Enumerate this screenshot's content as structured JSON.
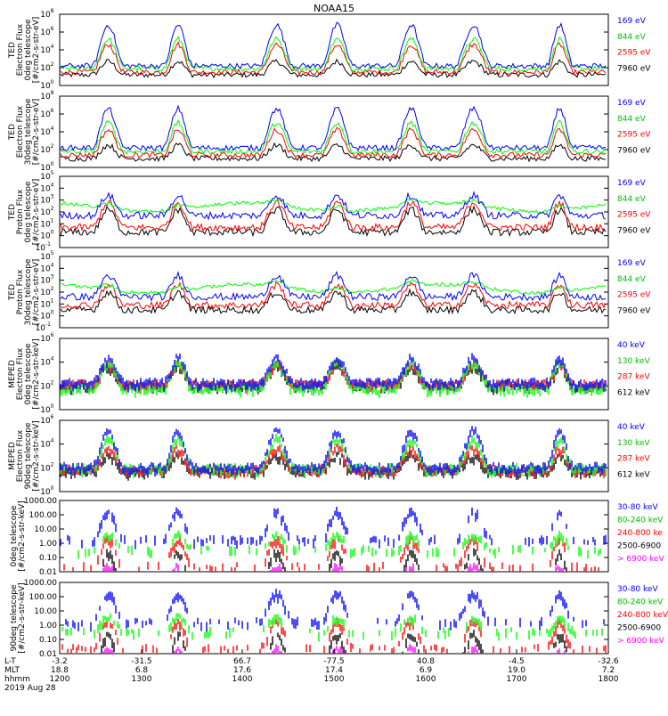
{
  "title": "NOAA15",
  "colors": {
    "blue": "#0000ff",
    "red": "#ff0000",
    "green": "#00ff00",
    "black": "#000000",
    "magenta": "#ff00ff"
  },
  "chart_data": [
    {
      "type": "line",
      "ylabel": [
        "TED",
        "Electron Flux",
        "0deg telescope",
        "[#/cm2-s-str-eV]"
      ],
      "scale": "log",
      "yticks": [
        "10^0",
        "10^2",
        "10^4",
        "10^6",
        "10^8"
      ],
      "ylim": [
        1,
        100000000
      ],
      "series": [
        {
          "name": "7960 eV",
          "color": "#000000",
          "base": 1.2,
          "peak": 2.7
        },
        {
          "name": "2595 eV",
          "color": "#ff0000",
          "base": 1.5,
          "peak": 4.6
        },
        {
          "name": "844 eV",
          "color": "#00ff00",
          "base": 1.9,
          "peak": 5.2
        },
        {
          "name": "169 eV",
          "color": "#0000ff",
          "base": 2.2,
          "peak": 6.8
        }
      ]
    },
    {
      "type": "line",
      "ylabel": [
        "TED",
        "Electron Flux",
        "30deg telescope",
        "[#/cm2-s-str-eV]"
      ],
      "scale": "log",
      "yticks": [
        "10^0",
        "10^2",
        "10^4",
        "10^6",
        "10^8"
      ],
      "ylim": [
        1,
        100000000
      ],
      "series": [
        {
          "name": "7960 eV",
          "color": "#000000",
          "base": 1.0,
          "peak": 2.5
        },
        {
          "name": "2595 eV",
          "color": "#ff0000",
          "base": 1.4,
          "peak": 4.2
        },
        {
          "name": "844 eV",
          "color": "#00ff00",
          "base": 1.8,
          "peak": 5.0
        },
        {
          "name": "169 eV",
          "color": "#0000ff",
          "base": 2.2,
          "peak": 6.6
        }
      ]
    },
    {
      "type": "line",
      "ylabel": [
        "TED",
        "Proton Flux",
        "0deg telescope",
        "[#/cm2-s-str-eV]"
      ],
      "scale": "log",
      "yticks": [
        "10^-1",
        "10^0",
        "10^1",
        "10^2",
        "10^3",
        "10^4",
        "10^5"
      ],
      "ylim": [
        0.1,
        100000
      ],
      "series": [
        {
          "name": "7960 eV",
          "color": "#000000",
          "base": 0.3,
          "peak": 2.2
        },
        {
          "name": "2595 eV",
          "color": "#ff0000",
          "base": 0.7,
          "peak": 2.8
        },
        {
          "name": "844 eV",
          "color": "#00ff00",
          "base": 2.4,
          "peak": 3.2
        },
        {
          "name": "169 eV",
          "color": "#0000ff",
          "base": 1.7,
          "peak": 3.4
        }
      ]
    },
    {
      "type": "line",
      "ylabel": [
        "TED",
        "Proton Flux",
        "30deg telescope",
        "[#/cm2-s-str-eV]"
      ],
      "scale": "log",
      "yticks": [
        "10^-1",
        "10^0",
        "10^1",
        "10^2",
        "10^3",
        "10^4",
        "10^5"
      ],
      "ylim": [
        0.1,
        100000
      ],
      "series": [
        {
          "name": "7960 eV",
          "color": "#000000",
          "base": 0.5,
          "peak": 2.0
        },
        {
          "name": "2595 eV",
          "color": "#ff0000",
          "base": 0.9,
          "peak": 2.6
        },
        {
          "name": "844 eV",
          "color": "#00ff00",
          "base": 2.3,
          "peak": 3.0
        },
        {
          "name": "169 eV",
          "color": "#0000ff",
          "base": 1.6,
          "peak": 3.4
        }
      ]
    },
    {
      "type": "line",
      "ylabel": [
        "MEPED",
        "Electron Flux",
        "0deg telescope",
        "[#/cm2-s-str-keV]"
      ],
      "scale": "log",
      "yticks": [
        "10^0",
        "10^2",
        "10^4",
        "10^6"
      ],
      "ylim": [
        1,
        1000000
      ],
      "series": [
        {
          "name": "612 keV",
          "color": "#000000",
          "base": 2.2,
          "peak": 3.8
        },
        {
          "name": "287 keV",
          "color": "#ff0000",
          "base": 2.3,
          "peak": 4.0
        },
        {
          "name": "130 keV",
          "color": "#00ff00",
          "base": 1.9,
          "peak": 4.2
        },
        {
          "name": "40 keV",
          "color": "#0000ff",
          "base": 2.4,
          "peak": 4.5
        }
      ]
    },
    {
      "type": "line",
      "ylabel": [
        "MEPED",
        "Electron Flux",
        "90deg telescope",
        "[#/cm2-s-str-keV]"
      ],
      "scale": "log",
      "yticks": [
        "10^0",
        "10^2",
        "10^4",
        "10^6"
      ],
      "ylim": [
        1,
        1000000
      ],
      "series": [
        {
          "name": "612 keV",
          "color": "#000000",
          "base": 1.9,
          "peak": 3.2
        },
        {
          "name": "287 keV",
          "color": "#ff0000",
          "base": 2.0,
          "peak": 3.8
        },
        {
          "name": "130 keV",
          "color": "#00ff00",
          "base": 2.1,
          "peak": 4.6
        },
        {
          "name": "40 keV",
          "color": "#0000ff",
          "base": 2.2,
          "peak": 5.3
        }
      ]
    },
    {
      "type": "line",
      "ylabel": [
        "0deg telescope",
        "[#/cm2-s-str-keV]"
      ],
      "scale": "log",
      "yticks": [
        "0.01",
        "0.10",
        "1.00",
        "10.00",
        "100.00",
        "1000.00"
      ],
      "ylim": [
        0.01,
        1000
      ],
      "series": [
        {
          "name": "> 6900 keV",
          "color": "#ff00ff",
          "base": -3,
          "peak": -1.5
        },
        {
          "name": "2500-6900",
          "color": "#000000",
          "base": -3,
          "peak": -0.5
        },
        {
          "name": "240-800 ke",
          "color": "#ff0000",
          "base": -1.5,
          "peak": 0.4
        },
        {
          "name": "80-240 keV",
          "color": "#00ff00",
          "base": -0.3,
          "peak": 0.7
        },
        {
          "name": "30-80 keV",
          "color": "#0000ff",
          "base": 0.4,
          "peak": 2.4
        }
      ]
    },
    {
      "type": "line",
      "ylabel": [
        "90deg telescope",
        "[#/cm2-s-str-keV]"
      ],
      "scale": "log",
      "yticks": [
        "0.01",
        "0.10",
        "1.00",
        "10.00",
        "100.00",
        "1000.00"
      ],
      "ylim": [
        0.01,
        1000
      ],
      "series": [
        {
          "name": "> 6900 keV",
          "color": "#ff00ff",
          "base": -3,
          "peak": -1.5
        },
        {
          "name": "2500-6900",
          "color": "#000000",
          "base": -3,
          "peak": -0.5
        },
        {
          "name": "240-800 keV",
          "color": "#ff0000",
          "base": -1.5,
          "peak": 0.4
        },
        {
          "name": "80-240 keV",
          "color": "#00ff00",
          "base": -0.3,
          "peak": 0.7
        },
        {
          "name": "30-80 keV",
          "color": "#0000ff",
          "base": 0.4,
          "peak": 2.4
        }
      ]
    }
  ],
  "xaxis": {
    "row_labels": [
      "L-T",
      "MLT",
      "hhmm",
      "2019 Aug 28"
    ],
    "ticks": [
      {
        "lat": "-3.2",
        "mlt": "18.8",
        "hhmm": "1200"
      },
      {
        "lat": "-31.5",
        "mlt": "6.8",
        "hhmm": "1300"
      },
      {
        "lat": "66.7",
        "mlt": "17.6",
        "hhmm": "1400"
      },
      {
        "lat": "-77.5",
        "mlt": "17.4",
        "hhmm": "1500"
      },
      {
        "lat": "40.8",
        "mlt": "6.9",
        "hhmm": "1600"
      },
      {
        "lat": "-4.5",
        "mlt": "19.0",
        "hhmm": "1700"
      },
      {
        "lat": "-32.6",
        "mlt": "7.2",
        "hhmm": "1800"
      }
    ]
  }
}
